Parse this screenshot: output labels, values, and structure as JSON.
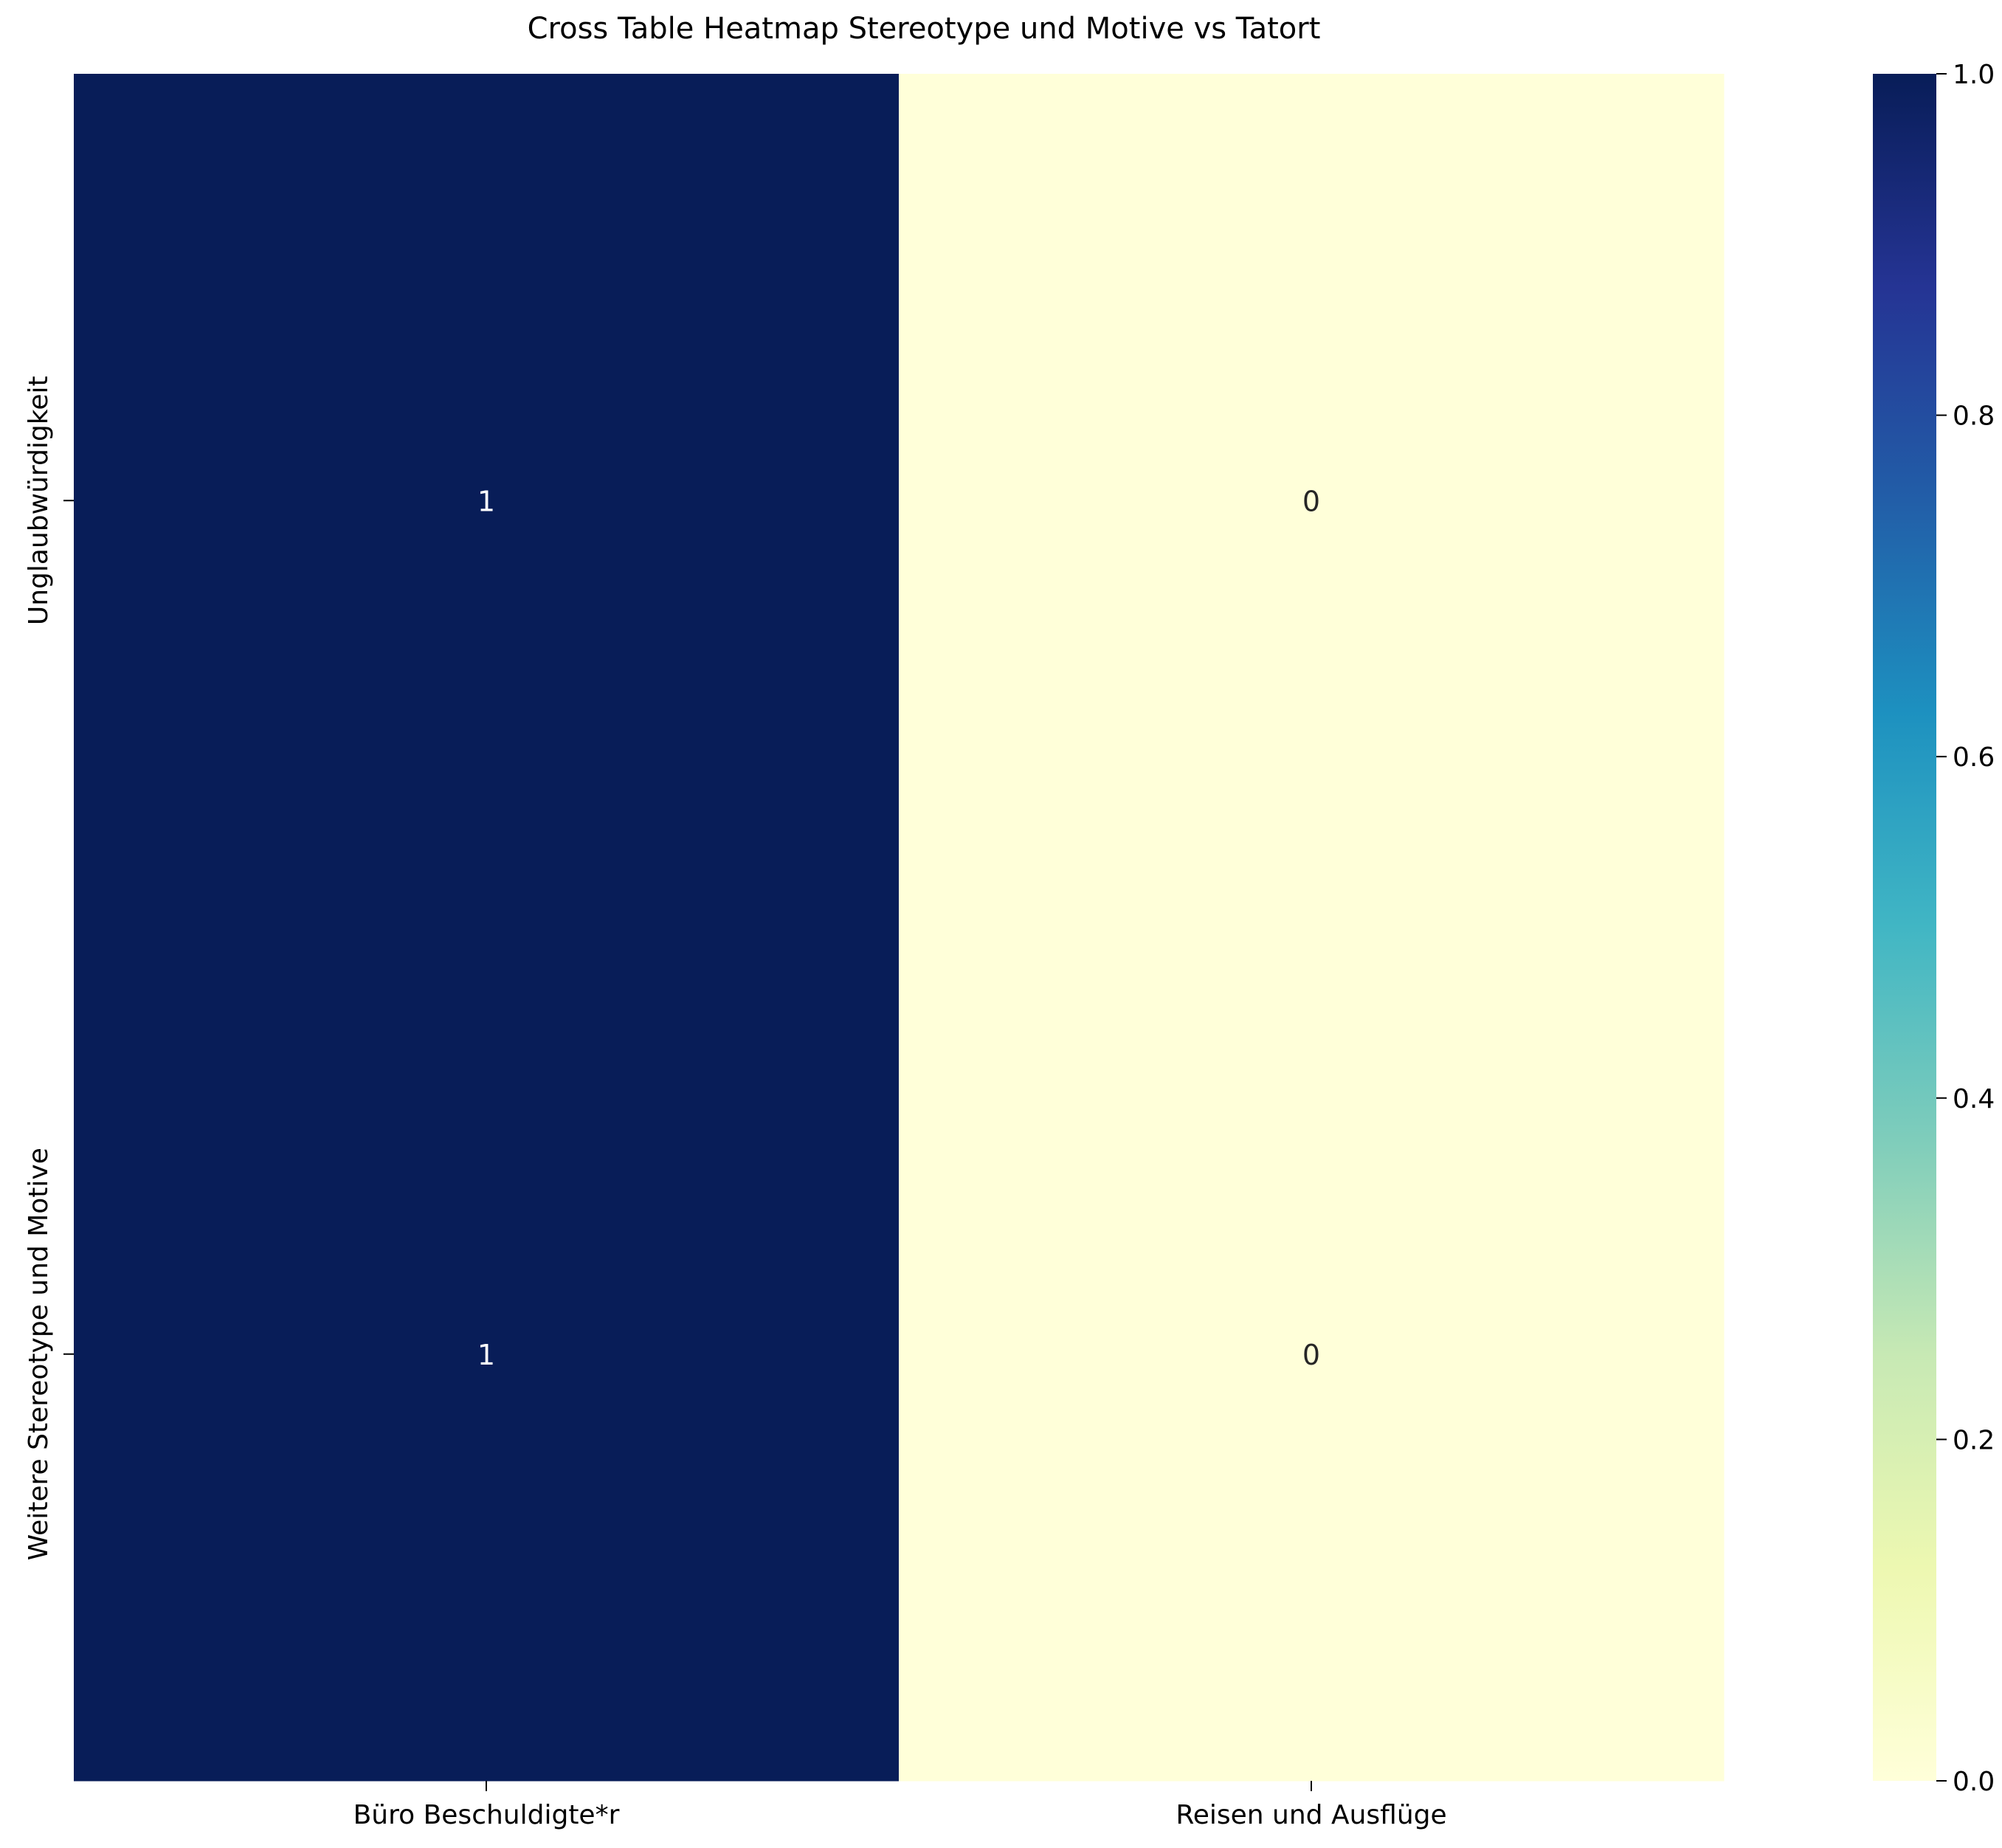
{
  "chart_data": {
    "type": "heatmap",
    "title": "Cross Table Heatmap Stereotype und Motive vs Tatort",
    "xlabel": "",
    "ylabel": "",
    "columns": [
      "Büro Beschuldigte*r",
      "Reisen und Ausflüge"
    ],
    "rows": [
      "Unglaubwürdigkeit",
      "Weitere Stereotype und Motive"
    ],
    "values": [
      [
        1,
        0
      ],
      [
        1,
        0
      ]
    ],
    "annotations": [
      [
        "1",
        "0"
      ],
      [
        "1",
        "0"
      ]
    ],
    "colormap": "YlGnBu",
    "vmin": 0,
    "vmax": 1,
    "colorbar_ticks": [
      "0.0",
      "0.2",
      "0.4",
      "0.6",
      "0.8",
      "1.0"
    ],
    "grid": false,
    "colors": {
      "low": "#ffffd9",
      "high": "#081d58",
      "annotation_on_dark": "#ffffff",
      "annotation_on_light": "#262626"
    }
  }
}
